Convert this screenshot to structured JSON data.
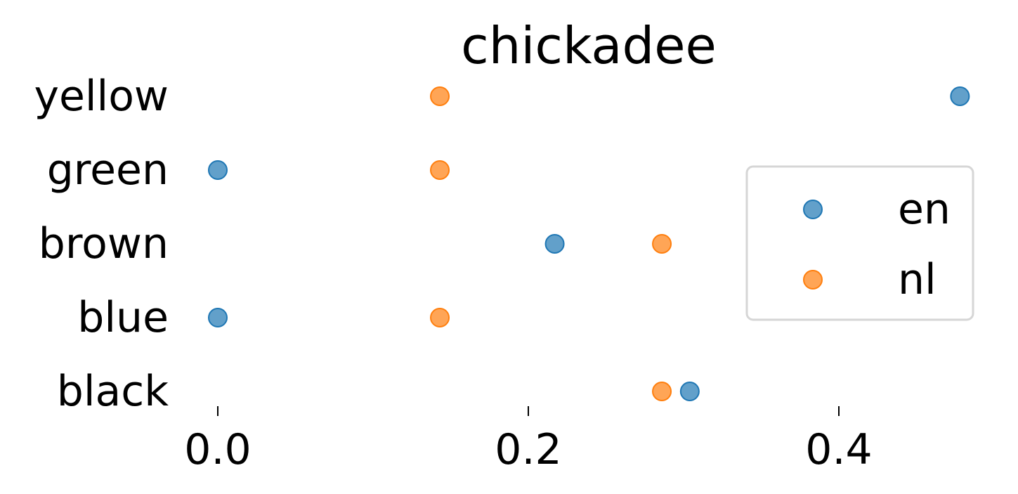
{
  "chart_data": {
    "type": "scatter",
    "title": "chickadee",
    "xlabel": "",
    "ylabel": "",
    "categories": [
      "yellow",
      "green",
      "brown",
      "blue",
      "black"
    ],
    "xlim": [
      -0.03,
      0.49
    ],
    "xticks": [
      0.0,
      0.2,
      0.4
    ],
    "xtick_labels": [
      "0.0",
      "0.2",
      "0.4"
    ],
    "grid": false,
    "legend_position": "center-right",
    "series": [
      {
        "name": "en",
        "color": "#1f77b4",
        "values": [
          0.478,
          0.0,
          0.217,
          0.0,
          0.304
        ]
      },
      {
        "name": "nl",
        "color": "#ff7f0e",
        "values": [
          0.143,
          0.143,
          0.286,
          0.143,
          0.286
        ]
      }
    ]
  }
}
